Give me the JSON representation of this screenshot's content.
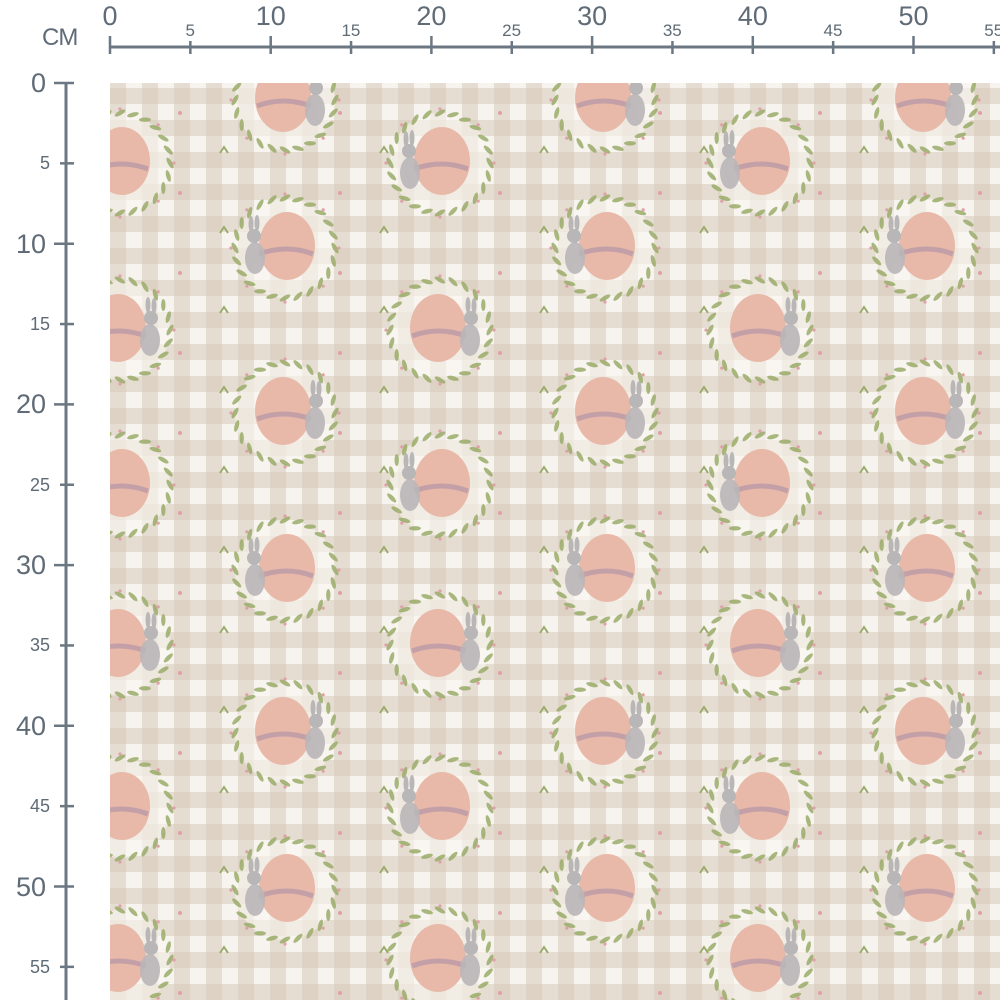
{
  "ruler": {
    "unit": "CM",
    "horizontal_labels": [
      "0",
      "5",
      "10",
      "15",
      "20",
      "25",
      "30",
      "35",
      "40",
      "45",
      "50",
      "55"
    ],
    "vertical_labels": [
      "0",
      "5",
      "10",
      "15",
      "20",
      "25",
      "30",
      "35",
      "40",
      "45",
      "50",
      "55"
    ],
    "color": "#6b7782"
  },
  "fabric": {
    "pattern": "easter egg and bunny in leaf wreath on beige gingham",
    "colors": {
      "gingham": "#d6cabA",
      "background": "#f7f3ee",
      "egg": "#e8b9a8",
      "wreath": "#9aab6a",
      "bunny": "#b9b6b8",
      "bow": "#b495a8",
      "dots": "#e0a0a8"
    }
  }
}
